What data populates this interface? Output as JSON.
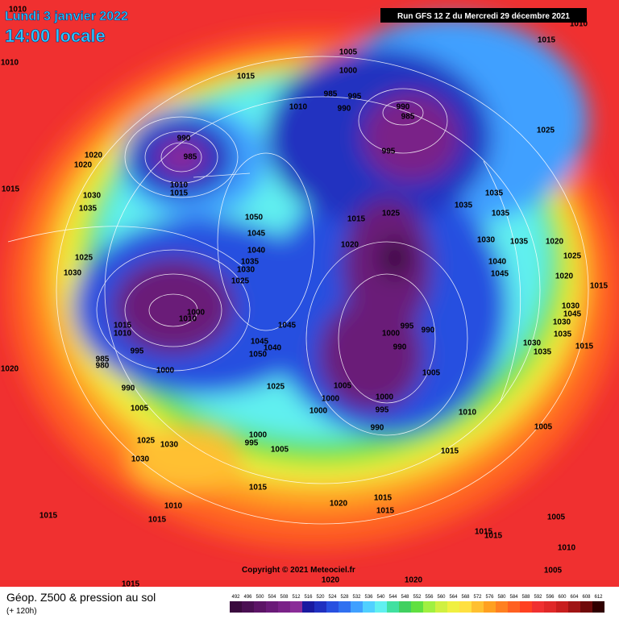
{
  "header": {
    "date": "Lundi 3 janvier 2022",
    "time": "14:00 locale",
    "run": "Run GFS 12 Z du Mercredi 29 décembre 2021"
  },
  "copyright": "Copyright © 2021 Meteociel.fr",
  "footer": {
    "title": "Géop. Z500 & pression au sol",
    "lead": "(+ 120h)"
  },
  "legend": {
    "values": [
      492,
      496,
      500,
      504,
      508,
      512,
      516,
      520,
      524,
      528,
      532,
      536,
      540,
      544,
      548,
      552,
      556,
      560,
      564,
      568,
      572,
      576,
      580,
      584,
      588,
      592,
      596,
      600,
      604,
      608,
      612
    ],
    "colors": [
      "#3a0a3e",
      "#4a0f52",
      "#5c1466",
      "#6a1a78",
      "#7a2288",
      "#8a2c98",
      "#1a1aa0",
      "#2030c0",
      "#2850e0",
      "#3070f0",
      "#40a0ff",
      "#50d0ff",
      "#60f0f0",
      "#40e0a0",
      "#40d060",
      "#60e040",
      "#a0f040",
      "#d0f040",
      "#f0f040",
      "#ffe040",
      "#ffc030",
      "#ffa020",
      "#ff8020",
      "#ff6020",
      "#ff4020",
      "#f03030",
      "#e02828",
      "#c81e1e",
      "#a01414",
      "#700a0a",
      "#300000"
    ]
  },
  "isobar_labels": [
    1010,
    1010,
    1015,
    1015,
    1010,
    1005,
    1000,
    995,
    990,
    985,
    1010,
    990,
    985,
    995,
    1025,
    990,
    985,
    1010,
    1015,
    1020,
    1020,
    1015,
    1030,
    1035,
    1050,
    1045,
    1040,
    1035,
    1030,
    1025,
    1015,
    1025,
    1035,
    1035,
    1035,
    1020,
    1030,
    1035,
    1040,
    1045,
    1020,
    1025,
    1020,
    1015,
    1025,
    1030,
    1000,
    1010,
    1015,
    1010,
    995,
    985,
    980,
    1000,
    990,
    1005,
    1045,
    1045,
    1040,
    1050,
    1025,
    995,
    990,
    1000,
    990,
    1005,
    1005,
    1000,
    1000,
    1000,
    995,
    990,
    1010,
    1005,
    1030,
    1045,
    1030,
    1035,
    1030,
    1035,
    1015,
    1000,
    995,
    1005,
    1015,
    1025,
    1030,
    1030,
    1015,
    1020,
    1015,
    1015,
    1010,
    1015,
    1015,
    1015,
    1015,
    1005,
    1010,
    1005,
    1015,
    1020,
    1020,
    1020
  ]
}
